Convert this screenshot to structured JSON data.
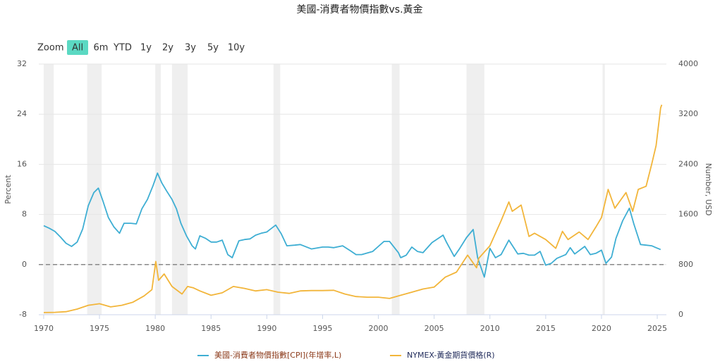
{
  "chart_data": {
    "type": "line",
    "title": "美國-消費者物價指數vs.黃金",
    "y_label": "Percent",
    "y2_label": "Number, USD",
    "range_selector": {
      "label": "Zoom",
      "buttons": [
        "All",
        "6m",
        "YTD",
        "1y",
        "2y",
        "3y",
        "5y",
        "10y"
      ],
      "active_index": 0
    },
    "xlim": [
      1969.56,
      2025.82
    ],
    "xticks": [
      1970,
      1975,
      1980,
      1985,
      1990,
      1995,
      2000,
      2005,
      2010,
      2015,
      2020,
      2025
    ],
    "ylim": [
      -8,
      32
    ],
    "yticks": [
      -8,
      0,
      8,
      16,
      24,
      32
    ],
    "y2lim": [
      0,
      4000
    ],
    "y2ticks": [
      0,
      800,
      1600,
      2400,
      3200,
      4000
    ],
    "grid": true,
    "shaded_periods": [
      [
        1970.0,
        1970.9
      ],
      [
        1973.9,
        1975.2
      ],
      [
        1980.0,
        1980.5
      ],
      [
        1981.5,
        1982.9
      ],
      [
        1990.6,
        1991.2
      ],
      [
        2001.2,
        2001.9
      ],
      [
        2007.9,
        2009.5
      ],
      [
        2020.1,
        2020.3
      ]
    ],
    "series": [
      {
        "name": "美國-消費者物價指數[CPI](年增率,L)",
        "color": "#3eaed3",
        "legend_text_color": "#8b3a1a",
        "x": [
          1970,
          1970.5,
          1971,
          1971.5,
          1972,
          1972.5,
          1973,
          1973.5,
          1974,
          1974.5,
          1974.9,
          1975.3,
          1975.8,
          1976.3,
          1976.8,
          1977.2,
          1977.8,
          1978.3,
          1978.8,
          1979.3,
          1979.8,
          1980.2,
          1980.6,
          1981.0,
          1981.5,
          1981.9,
          1982.3,
          1982.8,
          1983.3,
          1983.6,
          1984,
          1984.5,
          1985,
          1985.5,
          1986,
          1986.5,
          1986.9,
          1987.5,
          1988,
          1988.5,
          1989,
          1989.5,
          1990,
          1990.8,
          1991.3,
          1991.8,
          1992.5,
          1993,
          1994,
          1995,
          1995.5,
          1996,
          1996.8,
          1997.5,
          1998,
          1998.5,
          1999.5,
          2000,
          2000.5,
          2001,
          2001.8,
          2002,
          2002.5,
          2003,
          2003.5,
          2004,
          2004.8,
          2005.8,
          2006.1,
          2006.8,
          2007.3,
          2007.9,
          2008.5,
          2008.9,
          2009.5,
          2010,
          2010.5,
          2011,
          2011.7,
          2012.5,
          2013,
          2013.5,
          2014,
          2014.5,
          2015,
          2015.5,
          2016,
          2016.8,
          2017.2,
          2017.6,
          2018.5,
          2019,
          2019.5,
          2020,
          2020.4,
          2020.9,
          2021.3,
          2021.9,
          2022.5,
          2022.9,
          2023.5,
          2024,
          2024.5,
          2024.9,
          2025.3
        ],
        "values": [
          6.2,
          5.8,
          5.3,
          4.4,
          3.4,
          2.9,
          3.6,
          5.7,
          9.4,
          11.5,
          12.2,
          10.2,
          7.5,
          6.0,
          5.0,
          6.6,
          6.6,
          6.5,
          8.9,
          10.4,
          12.6,
          14.6,
          13.0,
          11.8,
          10.4,
          8.9,
          6.6,
          4.6,
          3.0,
          2.5,
          4.6,
          4.2,
          3.6,
          3.6,
          3.9,
          1.6,
          1.1,
          3.8,
          4.0,
          4.1,
          4.7,
          5.0,
          5.2,
          6.3,
          4.9,
          3.0,
          3.1,
          3.2,
          2.5,
          2.8,
          2.8,
          2.7,
          3.0,
          2.2,
          1.6,
          1.6,
          2.1,
          2.9,
          3.7,
          3.7,
          1.9,
          1.1,
          1.5,
          2.8,
          2.1,
          1.9,
          3.5,
          4.7,
          3.6,
          1.3,
          2.6,
          4.3,
          5.6,
          1.1,
          -2.0,
          2.6,
          1.1,
          1.6,
          3.9,
          1.7,
          1.8,
          1.5,
          1.5,
          2.1,
          -0.1,
          0.2,
          1.0,
          1.6,
          2.7,
          1.7,
          2.9,
          1.6,
          1.8,
          2.3,
          0.2,
          1.2,
          4.2,
          7.0,
          9.0,
          6.5,
          3.2,
          3.1,
          3.0,
          2.7,
          2.4
        ]
      },
      {
        "name": "NYMEX-黃金期貨價格(R)",
        "color": "#f2b53a",
        "legend_text_color": "#1f2a5a",
        "axis": "y2",
        "x": [
          1970,
          1971,
          1972,
          1973,
          1974,
          1975,
          1976,
          1977,
          1978,
          1979,
          1979.7,
          1980.05,
          1980.3,
          1980.8,
          1981.5,
          1982.4,
          1982.9,
          1983.4,
          1984,
          1985,
          1986,
          1987,
          1988,
          1989,
          1990,
          1991,
          1992,
          1993,
          1994,
          1995,
          1996,
          1997,
          1998,
          1999,
          2000,
          2001,
          2002,
          2003,
          2004,
          2005,
          2006,
          2007,
          2008,
          2008.8,
          2009,
          2010,
          2011,
          2011.7,
          2012,
          2012.8,
          2013.5,
          2014,
          2015,
          2015.9,
          2016.5,
          2017,
          2018,
          2018.8,
          2019.5,
          2020,
          2020.6,
          2021.2,
          2022.2,
          2022.8,
          2023.3,
          2024,
          2024.5,
          2024.9,
          2025.3,
          2025.4
        ],
        "values": [
          35,
          38,
          48,
          90,
          150,
          175,
          125,
          150,
          200,
          300,
          400,
          850,
          550,
          650,
          450,
          330,
          450,
          430,
          380,
          310,
          350,
          450,
          420,
          380,
          400,
          360,
          340,
          380,
          385,
          385,
          390,
          330,
          290,
          280,
          280,
          260,
          310,
          360,
          410,
          440,
          600,
          680,
          950,
          750,
          900,
          1100,
          1500,
          1800,
          1650,
          1750,
          1250,
          1300,
          1200,
          1060,
          1330,
          1200,
          1320,
          1200,
          1400,
          1550,
          2000,
          1700,
          1950,
          1650,
          2000,
          2050,
          2400,
          2700,
          3300,
          3350
        ]
      }
    ]
  }
}
